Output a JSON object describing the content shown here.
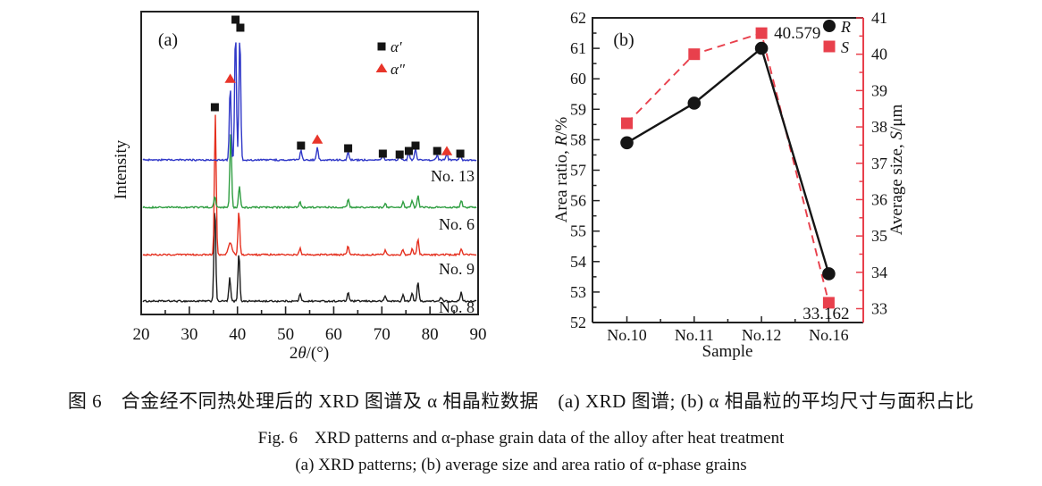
{
  "captions": {
    "zh": "图 6　合金经不同热处理后的 XRD 图谱及 α 相晶粒数据　(a) XRD 图谱; (b) α 相晶粒的平均尺寸与面积占比",
    "en1": "Fig. 6　XRD patterns and α-phase grain data of the alloy after heat treatment",
    "en2": "(a) XRD patterns; (b) average size and area ratio of α-phase grains"
  },
  "chart_data": [
    {
      "panel": "(a)",
      "type": "line",
      "subtype": "xrd-pattern",
      "xlabel": "2θ/(°)",
      "ylabel": "Intensity",
      "xlim": [
        20,
        90
      ],
      "xticks": [
        20,
        30,
        40,
        50,
        60,
        70,
        80,
        90
      ],
      "legend": [
        {
          "label": "α′",
          "marker": "square",
          "color": "#141414"
        },
        {
          "label": "α″",
          "marker": "triangle",
          "color": "#e8352a"
        }
      ],
      "series": [
        {
          "name": "No. 8",
          "color": "#1b1b1b",
          "peaks": [
            [
              35.3,
              108
            ],
            [
              38.4,
              26
            ],
            [
              40.3,
              55
            ],
            [
              53.0,
              8
            ],
            [
              63.0,
              10
            ],
            [
              70.7,
              6
            ],
            [
              74.4,
              7
            ],
            [
              76.3,
              9
            ],
            [
              77.5,
              22
            ],
            [
              82.3,
              4
            ],
            [
              86.5,
              10
            ]
          ]
        },
        {
          "name": "No. 9",
          "color": "#e5301f",
          "peaks": [
            [
              35.4,
              156
            ],
            [
              38.5,
              13,
              0.55
            ],
            [
              40.3,
              50
            ],
            [
              53.0,
              7
            ],
            [
              63.0,
              10
            ],
            [
              70.7,
              5
            ],
            [
              74.4,
              6
            ],
            [
              76.3,
              7
            ],
            [
              77.5,
              18
            ],
            [
              86.5,
              7
            ]
          ]
        },
        {
          "name": "No. 6",
          "color": "#2f9e41",
          "peaks": [
            [
              35.3,
              12
            ],
            [
              38.6,
              83
            ],
            [
              40.4,
              24
            ],
            [
              53.0,
              6
            ],
            [
              63.0,
              9
            ],
            [
              70.7,
              4
            ],
            [
              74.4,
              6
            ],
            [
              76.3,
              8
            ],
            [
              77.5,
              13
            ],
            [
              86.5,
              8
            ]
          ]
        },
        {
          "name": "No. 13",
          "color": "#3038c8",
          "peaks": [
            [
              38.5,
              84
            ],
            [
              39.6,
              146
            ],
            [
              40.5,
              142
            ],
            [
              53.2,
              11
            ],
            [
              56.6,
              15
            ],
            [
              63.0,
              9
            ],
            [
              70.2,
              6
            ],
            [
              73.7,
              6
            ],
            [
              75.6,
              9
            ],
            [
              77.0,
              13
            ],
            [
              81.5,
              5
            ],
            [
              83.5,
              7
            ],
            [
              86.3,
              6
            ]
          ]
        }
      ],
      "peak_markers": [
        {
          "marker": "square",
          "x": 35.3,
          "y": 120
        },
        {
          "marker": "triangle",
          "x": 38.5,
          "y": 88
        },
        {
          "marker": "square",
          "x": 39.6,
          "y": 22
        },
        {
          "marker": "square",
          "x": 40.6,
          "y": 31
        },
        {
          "marker": "square",
          "x": 53.2,
          "y": 163
        },
        {
          "marker": "triangle",
          "x": 56.6,
          "y": 156
        },
        {
          "marker": "square",
          "x": 63.0,
          "y": 166
        },
        {
          "marker": "square",
          "x": 70.2,
          "y": 172
        },
        {
          "marker": "square",
          "x": 73.7,
          "y": 173
        },
        {
          "marker": "square",
          "x": 75.6,
          "y": 169
        },
        {
          "marker": "square",
          "x": 77.0,
          "y": 163
        },
        {
          "marker": "square",
          "x": 81.5,
          "y": 169
        },
        {
          "marker": "triangle",
          "x": 83.5,
          "y": 169
        },
        {
          "marker": "square",
          "x": 86.3,
          "y": 172
        }
      ]
    },
    {
      "panel": "(b)",
      "type": "line",
      "xlabel": "Sample",
      "categories": [
        "No.10",
        "No.11",
        "No.12",
        "No.16"
      ],
      "left_axis": {
        "label": "Area ratio, R/%",
        "min": 52,
        "max": 62,
        "tick_step": 1,
        "color": "#222222"
      },
      "right_axis": {
        "label": "Average size, S/μm",
        "min": 33,
        "max": 41,
        "tick_step": 1,
        "color": "#e8404c"
      },
      "series": [
        {
          "name": "R",
          "axis": "left",
          "marker": "circle",
          "line": "solid",
          "color": "#151515",
          "values": [
            57.9,
            59.2,
            61.0,
            53.6
          ]
        },
        {
          "name": "S",
          "axis": "right",
          "marker": "square",
          "line": "dashed",
          "color": "#e8404c",
          "values": [
            38.1,
            40.0,
            40.579,
            33.162
          ]
        }
      ],
      "annotations": [
        {
          "text": "40.579",
          "series": "S",
          "point": 2
        },
        {
          "text": "33.162",
          "series": "S",
          "point": 3
        }
      ]
    }
  ]
}
